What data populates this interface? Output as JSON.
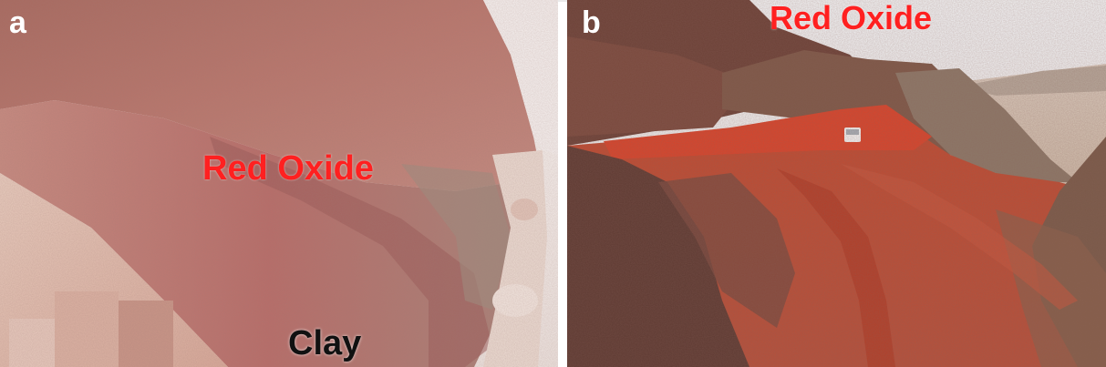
{
  "figure": {
    "panels": [
      {
        "letter": "a",
        "labels": {
          "oxide": "Red Oxide",
          "clay": "Clay"
        }
      },
      {
        "letter": "b",
        "labels": {
          "oxide": "Red Oxide"
        }
      }
    ]
  },
  "colors": {
    "label_red": "#ff2020",
    "label_dark": "#111111",
    "panel_letter": "#ffffff",
    "rock_pink": "#c98a80",
    "rock_pale": "#e6c3b3",
    "oxide_red": "#c8402a",
    "sky": "#eef0f2"
  }
}
